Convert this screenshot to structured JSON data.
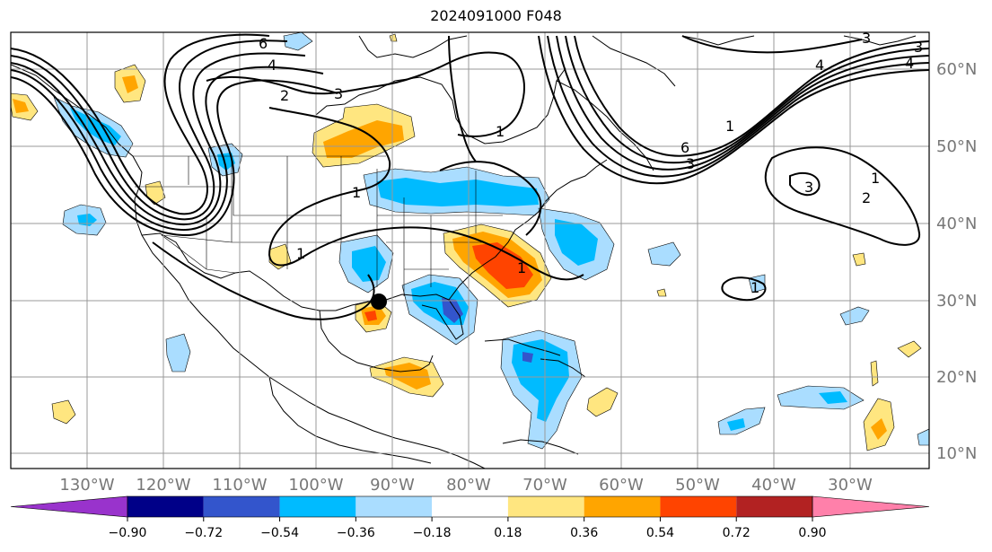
{
  "title": "2024091000 F048",
  "axes": {
    "lon_labels": [
      "130°W",
      "120°W",
      "110°W",
      "100°W",
      "90°W",
      "80°W",
      "70°W",
      "60°W",
      "50°W",
      "40°W",
      "30°W"
    ],
    "lat_labels": [
      "60°N",
      "50°N",
      "40°N",
      "30°N",
      "20°N",
      "10°N"
    ]
  },
  "contour_labels": [
    "6",
    "4",
    "2",
    "3",
    "1",
    "1",
    "1",
    "1",
    "1",
    "6",
    "3",
    "4",
    "3",
    "1",
    "2",
    "3",
    "4",
    "3",
    "1"
  ],
  "colorbar": {
    "ticks": [
      "−0.90",
      "−0.72",
      "−0.54",
      "−0.36",
      "−0.18",
      "0.18",
      "0.36",
      "0.54",
      "0.72",
      "0.90"
    ],
    "colors": [
      "#9933cc",
      "#000088",
      "#3355cc",
      "#00bbff",
      "#aaddff",
      "#ffffff",
      "#ffe680",
      "#ffa500",
      "#ff4400",
      "#b22222",
      "#ff80aa"
    ]
  },
  "fill_colors": {
    "neg_light": "#aaddff",
    "neg_mid": "#00bbff",
    "neg_strong": "#3355cc",
    "pos_light": "#ffe680",
    "pos_mid": "#ffa500",
    "pos_strong": "#ff4400"
  },
  "marker": {
    "label": "storm-center"
  }
}
